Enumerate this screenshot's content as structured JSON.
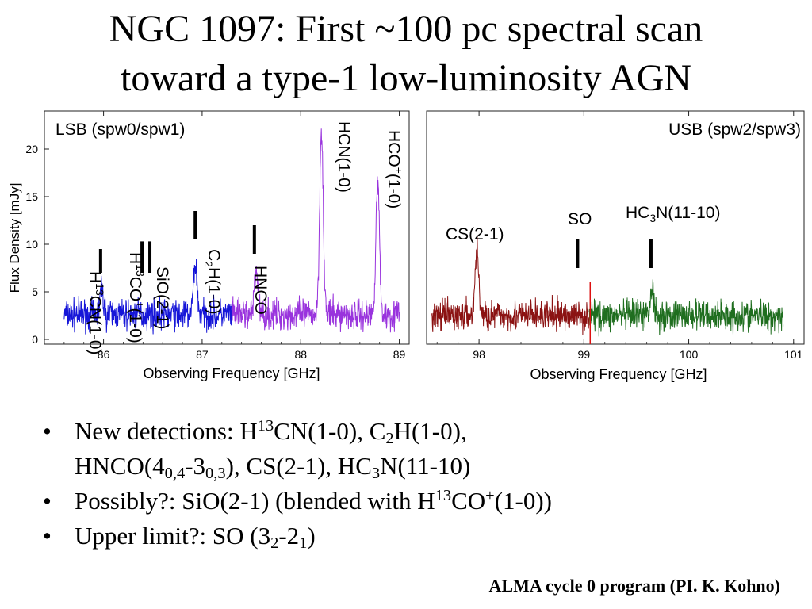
{
  "slide": {
    "title_line1": "NGC 1097: First ~100 pc spectral scan",
    "title_line2": "toward a type-1 low-luminosity AGN",
    "credit": "ALMA cycle 0 program (PI. K. Kohno)"
  },
  "bullets": {
    "b1_prefix": "New detections: H",
    "b1_sup13": "13",
    "b1_cn": "CN(1-0), C",
    "b1_sub2": "2",
    "b1_h10": "H(1-0),",
    "b1_hnco": "HNCO(4",
    "b1_sub04": "0,4",
    "b1_dash3": "-3",
    "b1_sub03": "0,3",
    "b1_cs_hc": "), CS(2-1), HC",
    "b1_sub3": "3",
    "b1_n1110": "N(11-10)",
    "b2_prefix": "Possibly?: SiO(2-1)   (blended with H",
    "b2_sup13": "13",
    "b2_co": "CO",
    "b2_plus": "+",
    "b2_suffix": "(1-0))",
    "b3_prefix": "Upper limit?: SO (3",
    "b3_sub2": "2",
    "b3_dash2": "-2",
    "b3_sub1": "1",
    "b3_suffix": ")"
  },
  "chart_data": [
    {
      "type": "line",
      "panel_label": "LSB (spw0/spw1)",
      "xlabel": "Observing Frequency [GHz]",
      "ylabel": "Flux Density [mJy]",
      "xlim": [
        85.4,
        89.1
      ],
      "ylim": [
        -0.5,
        24
      ],
      "xticks": [
        86,
        87,
        88,
        89
      ],
      "yticks": [
        0,
        5,
        10,
        15,
        20
      ],
      "series": [
        {
          "color": "#1515d8",
          "x_range": [
            85.6,
            87.3
          ],
          "peaks": [
            {
              "x": 85.98,
              "y": 5.3
            },
            {
              "x": 86.93,
              "y": 8.0
            }
          ]
        },
        {
          "color": "#9933dd",
          "x_range": [
            87.3,
            89.0
          ],
          "peaks": [
            {
              "x": 87.55,
              "y": 7.3
            },
            {
              "x": 88.21,
              "y": 22.3
            },
            {
              "x": 88.78,
              "y": 16.8
            }
          ]
        }
      ],
      "baseline": 2.6,
      "lines": [
        {
          "label_parts": [
            "H",
            "13",
            "CN(1-0)"
          ],
          "label_style": "sup",
          "x": 85.97,
          "tick_y": [
            7,
            9.5
          ]
        },
        {
          "label_parts": [
            "H",
            "13",
            "CO",
            "+",
            "(1-0)"
          ],
          "label_style": "sup2",
          "x": 86.39,
          "tick_y": [
            7,
            10.3
          ]
        },
        {
          "label_parts": [
            "SiO(2-1)"
          ],
          "label_style": "plain",
          "x": 86.47,
          "tick_y": [
            7,
            10.3
          ]
        },
        {
          "label_parts": [
            "C",
            "2",
            "H(1-0)"
          ],
          "label_style": "sub",
          "x": 86.93,
          "tick_y": [
            10.5,
            13.5
          ]
        },
        {
          "label_parts": [
            "HNCO"
          ],
          "label_style": "plain",
          "x": 87.53,
          "tick_y": [
            9,
            12
          ]
        },
        {
          "label_parts": [
            "HCN(1-0)"
          ],
          "label_style": "plain",
          "x": 88.21
        },
        {
          "label_parts": [
            "HCO",
            "+",
            "(1-0)"
          ],
          "label_style": "sup",
          "x": 88.78
        }
      ]
    },
    {
      "type": "line",
      "panel_label": "USB (spw2/spw3)",
      "xlabel": "Observing Frequency [GHz]",
      "xlim": [
        97.5,
        101.1
      ],
      "ylim": [
        -0.5,
        24
      ],
      "xticks": [
        98,
        99,
        100,
        101
      ],
      "series": [
        {
          "color": "#8b1212",
          "x_range": [
            97.55,
            99.05
          ],
          "peaks": [
            {
              "x": 97.98,
              "y": 9.3
            }
          ]
        },
        {
          "color": "#1f6e1f",
          "x_range": [
            99.05,
            100.9
          ],
          "peaks": [
            {
              "x": 99.65,
              "y": 5.3
            }
          ]
        }
      ],
      "baseline": 2.5,
      "red_vline_x": 99.06,
      "lines": [
        {
          "label_parts": [
            "CS(2-1)"
          ],
          "label_style": "plain",
          "x": 97.98
        },
        {
          "label_parts": [
            "SO"
          ],
          "label_style": "plain",
          "x": 98.94,
          "tick_y": [
            7.5,
            10.5
          ]
        },
        {
          "label_parts": [
            "HC",
            "3",
            "N(11-10)"
          ],
          "label_style": "sub",
          "x": 99.64,
          "tick_y": [
            7.5,
            10.5
          ]
        }
      ]
    }
  ]
}
